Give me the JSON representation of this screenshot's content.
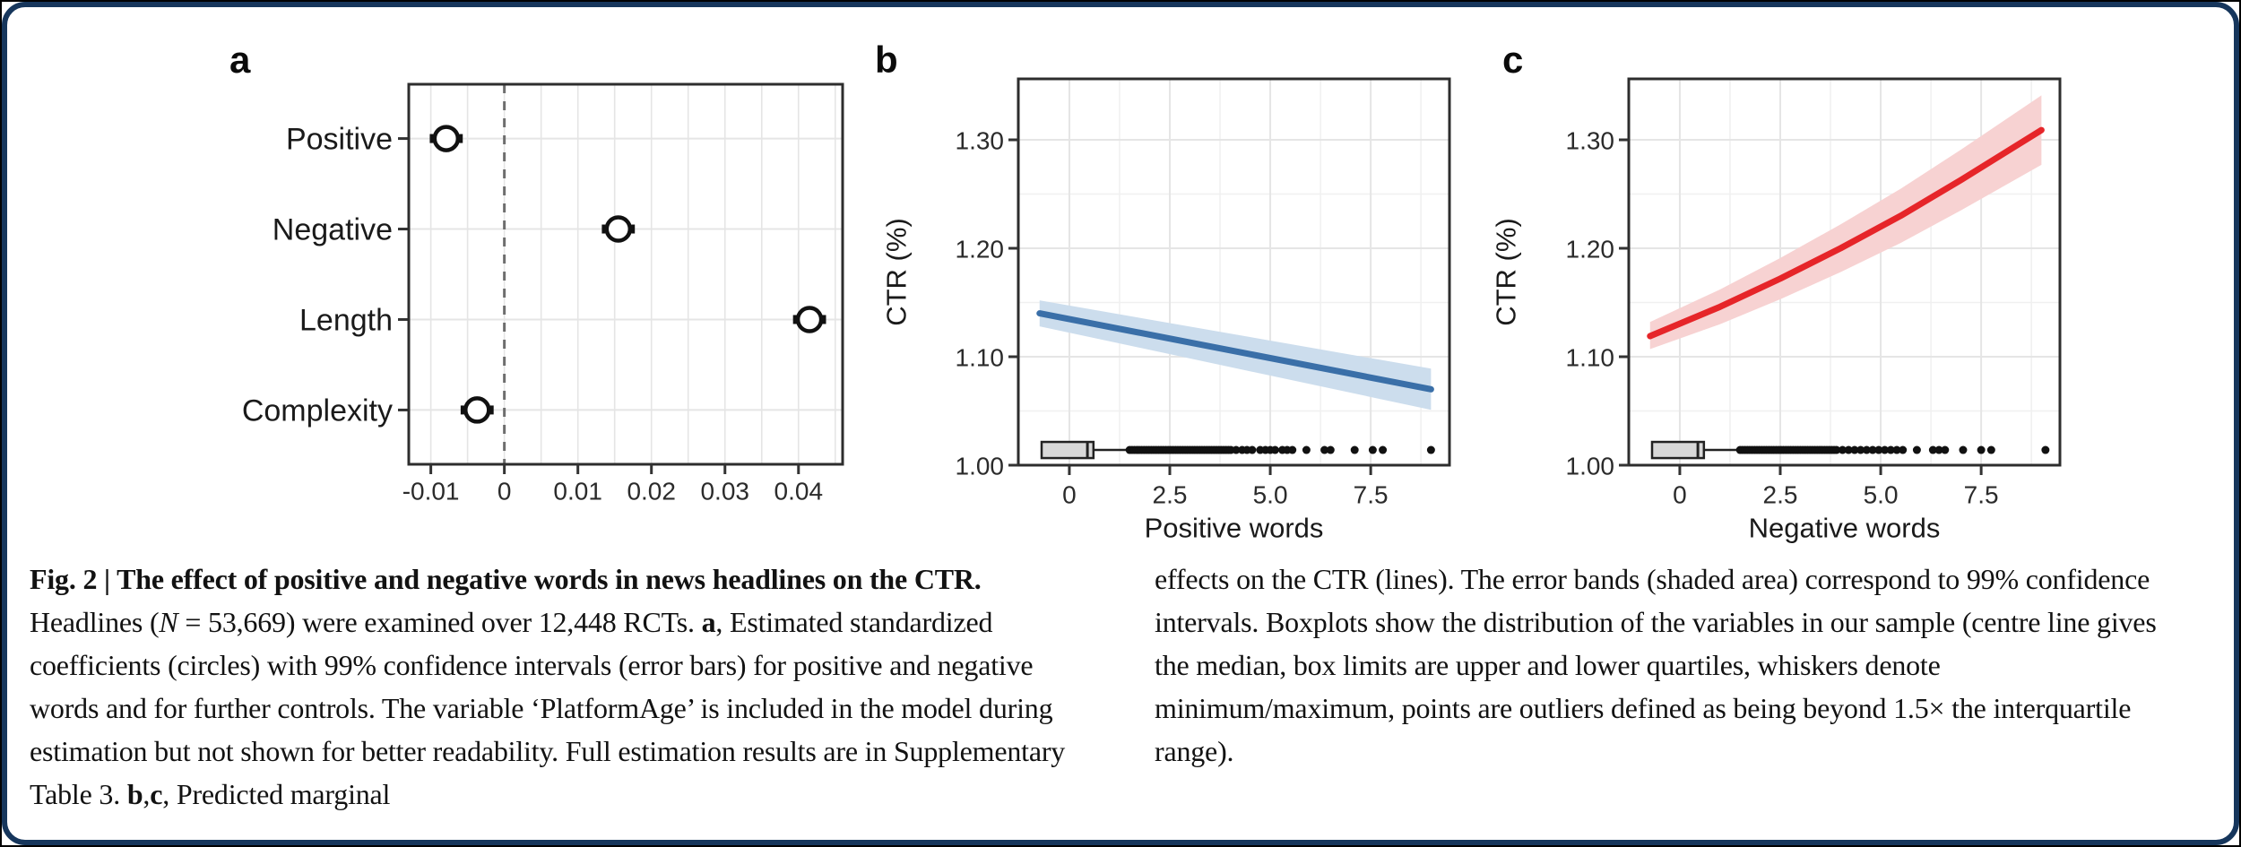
{
  "panels": [
    {
      "letter": "a"
    },
    {
      "letter": "b"
    },
    {
      "letter": "c"
    }
  ],
  "caption": {
    "left_segments": [
      {
        "text": "Fig. 2 | The effect of positive and negative words in news headlines on the CTR.",
        "bold": true
      },
      {
        "text": " Headlines ("
      },
      {
        "text": "N",
        "italic": true
      },
      {
        "text": " = 53,669) were examined over 12,448 RCTs. "
      },
      {
        "text": "a",
        "bold": true
      },
      {
        "text": ", Estimated standardized coefficients (circles) with 99% confidence intervals (error bars) for positive and negative words and for further controls. The variable ‘PlatformAge’ is included in the model during estimation but not shown for better readability. Full estimation results are in Supplementary Table 3. "
      },
      {
        "text": "b",
        "bold": true
      },
      {
        "text": ","
      },
      {
        "text": "c",
        "bold": true
      },
      {
        "text": ", Predicted marginal"
      }
    ],
    "right_segments": [
      {
        "text": "effects on the CTR (lines). The error bands (shaded area) correspond to 99% confidence intervals. Boxplots show the distribution of the variables in our sample (centre line gives the median, box limits are upper and lower quartiles, whiskers denote minimum/maximum, points are outliers defined as being beyond 1.5× the interquartile range)."
      }
    ]
  },
  "colors": {
    "card_border": "#16365c",
    "frame": "#2d2d2d",
    "grid_major": "#e5e5e5",
    "grid_minor": "#f0f0f0",
    "zero_dash": "#6e6e6e",
    "marker": "#111111",
    "blue_line": "#3a6fa8",
    "blue_band": "#ccdded",
    "red_line": "#e62529",
    "red_band": "#f7d2d2",
    "box_fill": "#d8d8d8",
    "box_stroke": "#222222",
    "tick_text": "#2b2b2b",
    "label_text": "#1a1a1a"
  },
  "chart_data": [
    {
      "type": "scatter",
      "panel": "a",
      "description": "Estimated standardized coefficients with 99% confidence intervals",
      "categories": [
        "Positive",
        "Negative",
        "Length",
        "Complexity"
      ],
      "estimates": [
        -0.0079,
        0.0155,
        0.0415,
        -0.0037
      ],
      "ci_low": [
        -0.0099,
        0.0135,
        0.0395,
        -0.0057
      ],
      "ci_high": [
        -0.0059,
        0.0175,
        0.0435,
        -0.0017
      ],
      "x_ticks": [
        "-0.01",
        "0",
        "0.01",
        "0.02",
        "0.03",
        "0.04"
      ],
      "x_tick_values": [
        -0.01,
        0,
        0.01,
        0.02,
        0.03,
        0.04
      ],
      "xlim": [
        -0.013,
        0.046
      ],
      "zero_line_x": 0,
      "grid_minor_step": 0.005,
      "grid": true,
      "legend": false
    },
    {
      "type": "line",
      "panel": "b",
      "title": "",
      "xlabel": "Positive words",
      "ylabel": "CTR (%)",
      "x_ticks": [
        "0",
        "2.5",
        "5.0",
        "7.5"
      ],
      "x_tick_values": [
        0,
        2.5,
        5,
        7.5
      ],
      "y_ticks": [
        "1.00",
        "1.10",
        "1.20",
        "1.30"
      ],
      "y_tick_values": [
        1.0,
        1.1,
        1.2,
        1.3
      ],
      "xlim": [
        -1.27,
        9.46
      ],
      "ylim": [
        1.0,
        1.3562
      ],
      "grid": true,
      "legend": false,
      "line_color_key": "blue_line",
      "band_color_key": "blue_band",
      "line": {
        "x": [
          -0.74,
          9.0
        ],
        "y": [
          1.14,
          1.07
        ]
      },
      "band": {
        "x": [
          -0.74,
          9.0
        ],
        "upper": [
          1.152,
          1.089
        ],
        "lower": [
          1.128,
          1.051
        ]
      },
      "boxplot": {
        "center_value": 1.014,
        "box_left": -0.69,
        "box_right": 0.6,
        "median": 0.45,
        "whisker_end": 1.45,
        "outliers": [
          1.5,
          1.56,
          1.62,
          1.68,
          1.74,
          1.8,
          1.86,
          1.92,
          1.98,
          2.04,
          2.1,
          2.16,
          2.22,
          2.28,
          2.34,
          2.4,
          2.46,
          2.52,
          2.58,
          2.64,
          2.7,
          2.76,
          2.82,
          2.88,
          2.94,
          3.0,
          3.06,
          3.12,
          3.18,
          3.24,
          3.3,
          3.36,
          3.42,
          3.48,
          3.54,
          3.6,
          3.66,
          3.72,
          3.78,
          3.84,
          3.9,
          3.96,
          4.02,
          4.15,
          4.3,
          4.42,
          4.55,
          4.75,
          4.88,
          5.0,
          5.12,
          5.3,
          5.42,
          5.55,
          5.9,
          6.35,
          6.5,
          7.1,
          7.55,
          7.8,
          9.0
        ]
      }
    },
    {
      "type": "line",
      "panel": "c",
      "title": "",
      "xlabel": "Negative words",
      "ylabel": "CTR (%)",
      "x_ticks": [
        "0",
        "2.5",
        "5.0",
        "7.5"
      ],
      "x_tick_values": [
        0,
        2.5,
        5,
        7.5
      ],
      "y_ticks": [
        "1.00",
        "1.10",
        "1.20",
        "1.30"
      ],
      "y_tick_values": [
        1.0,
        1.1,
        1.2,
        1.3
      ],
      "xlim": [
        -1.27,
        9.46
      ],
      "ylim": [
        1.0,
        1.3562
      ],
      "grid": true,
      "legend": false,
      "line_color_key": "red_line",
      "band_color_key": "red_band",
      "line": {
        "x": [
          -0.74,
          1.0,
          2.5,
          4.0,
          5.5,
          7.0,
          8.0,
          9.0
        ],
        "y": [
          1.119,
          1.146,
          1.172,
          1.2,
          1.23,
          1.263,
          1.286,
          1.309
        ]
      },
      "band": {
        "x": [
          -0.74,
          1.0,
          2.5,
          4.0,
          5.5,
          7.0,
          8.0,
          9.0
        ],
        "upper": [
          1.132,
          1.162,
          1.191,
          1.222,
          1.255,
          1.291,
          1.316,
          1.341
        ],
        "lower": [
          1.107,
          1.13,
          1.153,
          1.178,
          1.205,
          1.235,
          1.256,
          1.277
        ]
      },
      "boxplot": {
        "center_value": 1.014,
        "box_left": -0.69,
        "box_right": 0.6,
        "median": 0.45,
        "whisker_end": 1.45,
        "outliers": [
          1.5,
          1.56,
          1.62,
          1.68,
          1.74,
          1.8,
          1.86,
          1.92,
          1.98,
          2.04,
          2.1,
          2.16,
          2.22,
          2.28,
          2.34,
          2.4,
          2.46,
          2.52,
          2.58,
          2.64,
          2.7,
          2.76,
          2.82,
          2.88,
          2.94,
          3.0,
          3.06,
          3.12,
          3.18,
          3.24,
          3.3,
          3.36,
          3.42,
          3.48,
          3.54,
          3.6,
          3.66,
          3.72,
          3.78,
          3.84,
          3.9,
          4.05,
          4.2,
          4.35,
          4.5,
          4.65,
          4.8,
          4.95,
          5.1,
          5.25,
          5.4,
          5.55,
          5.9,
          6.3,
          6.45,
          6.6,
          7.05,
          7.5,
          7.75,
          9.1
        ]
      }
    }
  ]
}
